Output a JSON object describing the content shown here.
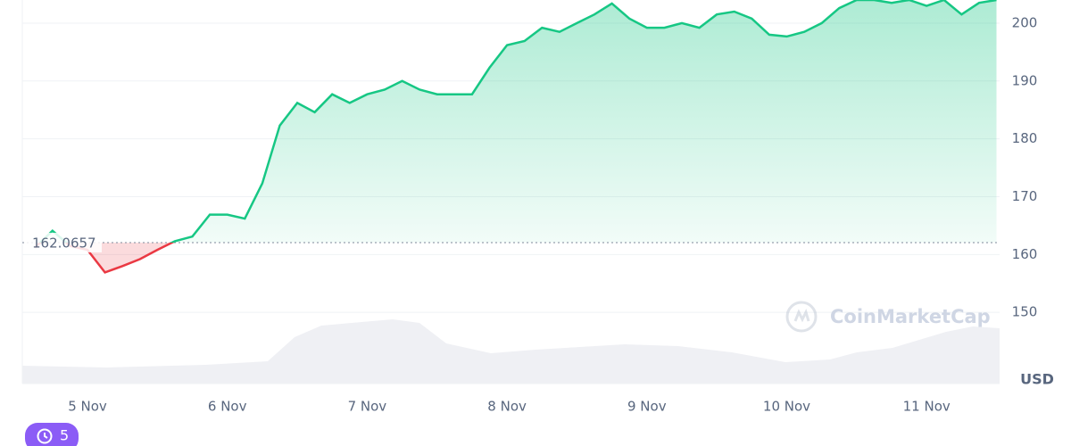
{
  "chart_data": {
    "type": "line",
    "categories": [
      null,
      null,
      null,
      "5 Nov",
      null,
      null,
      null,
      null,
      null,
      null,
      null,
      "6 Nov",
      null,
      null,
      null,
      null,
      null,
      null,
      null,
      "7 Nov",
      null,
      null,
      null,
      null,
      null,
      null,
      null,
      "8 Nov",
      null,
      null,
      null,
      null,
      null,
      null,
      null,
      "9 Nov",
      null,
      null,
      null,
      null,
      null,
      null,
      null,
      "10 Nov",
      null,
      null,
      null,
      null,
      null,
      null,
      null,
      "11 Nov",
      null,
      null,
      null,
      null
    ],
    "values": [
      161.2,
      164.1,
      161.5,
      160.8,
      156.9,
      158,
      159.2,
      160.8,
      162.3,
      163.1,
      166.9,
      166.9,
      166.2,
      172.3,
      182.3,
      186.2,
      184.6,
      187.7,
      186.2,
      187.7,
      188.5,
      190,
      188.5,
      187.7,
      187.7,
      187.7,
      192.3,
      196.2,
      196.9,
      199.2,
      198.5,
      200,
      201.5,
      203.4,
      200.8,
      199.2,
      199.2,
      200,
      199.2,
      201.5,
      202,
      200.8,
      198,
      197.7,
      198.5,
      200,
      202.6,
      204,
      204,
      203.5,
      204,
      203,
      204,
      201.5,
      203.5,
      204
    ],
    "baseline": 162.0657,
    "up_color": "#16c784",
    "down_color": "#ea3943",
    "ylim": [
      138,
      204
    ],
    "yticks": [
      150,
      160,
      170,
      180,
      190,
      200
    ],
    "ylabel": "USD",
    "grid": true,
    "watermark": "CoinMarketCap"
  },
  "history_badge": "5"
}
